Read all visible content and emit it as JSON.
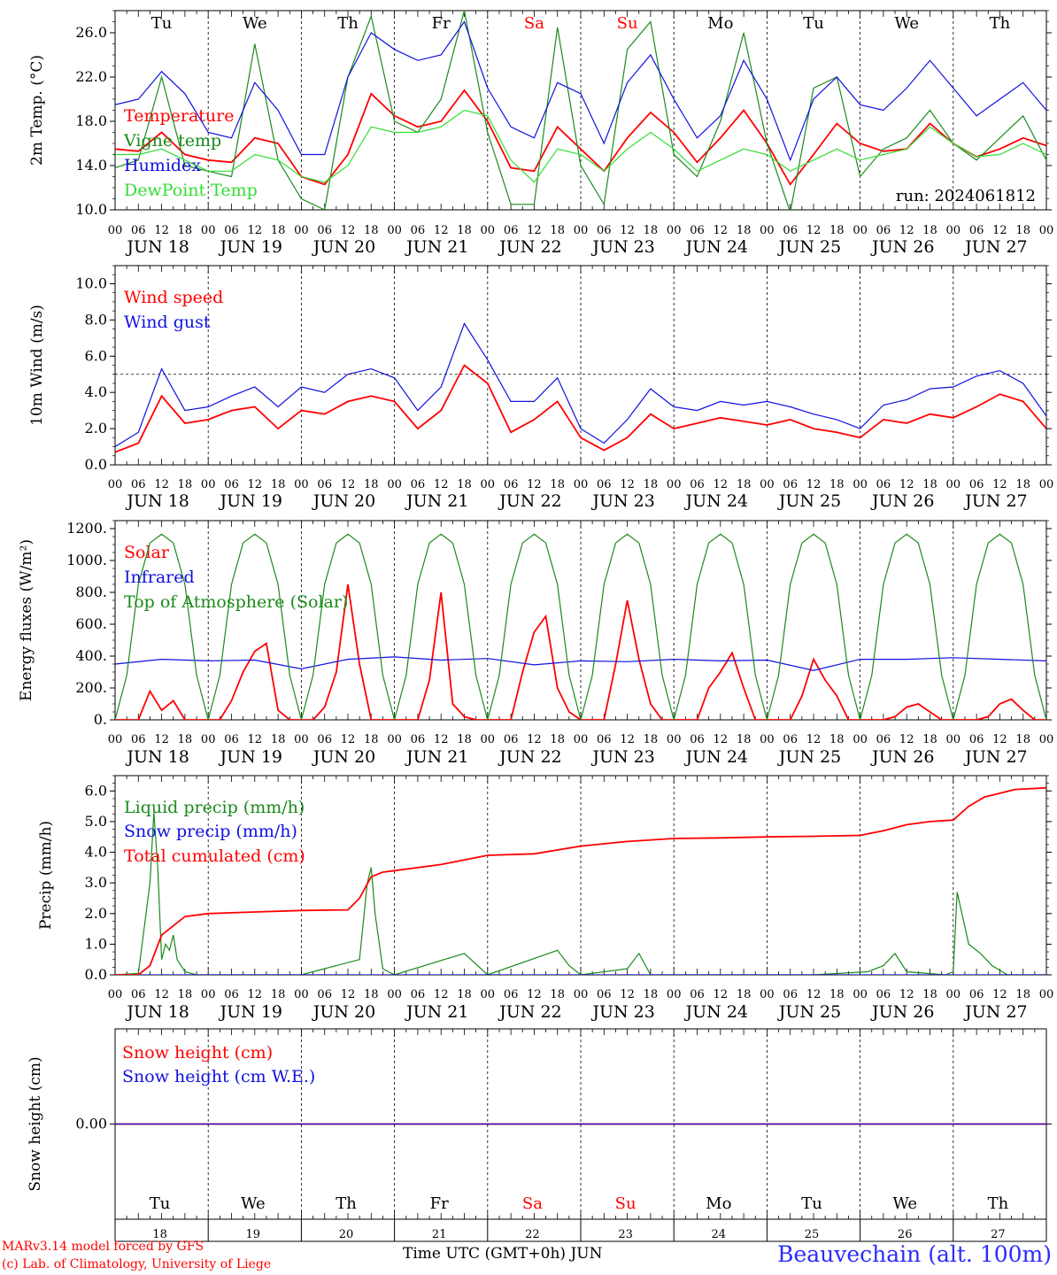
{
  "chart_data": [
    {
      "type": "line",
      "ylabel": "2m Temp. (°C)",
      "ylim": [
        10,
        28
      ],
      "yticks": [
        "10.0",
        "14.0",
        "18.0",
        "22.0",
        "26.0"
      ],
      "ytick_values": [
        10,
        14,
        18,
        22,
        26
      ],
      "days_top": [
        "Tu",
        "We",
        "Th",
        "Fr",
        "Sa",
        "Su",
        "Mo",
        "Tu",
        "We",
        "Th"
      ],
      "days_top_colors": [
        "#000000",
        "#000000",
        "#000000",
        "#000000",
        "#ff0000",
        "#ff0000",
        "#000000",
        "#000000",
        "#000000",
        "#000000"
      ],
      "annotation": "run: 2024061812",
      "x_unit": "hours since JUN 18 00 UTC",
      "series": [
        {
          "name": "Temperature",
          "color": "#ff0000",
          "x": [
            0,
            6,
            12,
            18,
            24,
            30,
            36,
            42,
            48,
            54,
            60,
            66,
            72,
            78,
            84,
            90,
            96,
            102,
            108,
            114,
            120,
            126,
            132,
            138,
            144,
            150,
            156,
            162,
            168,
            174,
            180,
            186,
            192,
            198,
            204,
            210,
            216,
            222,
            228,
            234,
            240
          ],
          "y": [
            15.5,
            15.3,
            17.0,
            15.0,
            14.5,
            14.3,
            16.5,
            16.0,
            13.0,
            12.3,
            15.0,
            20.5,
            18.5,
            17.5,
            18.0,
            20.8,
            18.0,
            13.8,
            13.5,
            17.5,
            15.5,
            13.5,
            16.5,
            18.8,
            17.0,
            14.3,
            16.5,
            19.0,
            16.0,
            12.3,
            15.0,
            17.8,
            16.0,
            15.3,
            15.5,
            17.8,
            16.0,
            14.8,
            15.5,
            16.5,
            15.8
          ]
        },
        {
          "name": "Vigne temp",
          "color": "#1a8a1a",
          "x": [
            0,
            6,
            12,
            18,
            24,
            30,
            36,
            42,
            48,
            54,
            60,
            66,
            72,
            78,
            84,
            90,
            96,
            102,
            108,
            114,
            120,
            126,
            132,
            138,
            144,
            150,
            156,
            162,
            168,
            174,
            180,
            186,
            192,
            198,
            204,
            210,
            216,
            222,
            228,
            234,
            240
          ],
          "y": [
            13.8,
            14.5,
            22.0,
            14.0,
            13.5,
            13.0,
            25.0,
            14.5,
            11.0,
            10.0,
            22.0,
            27.5,
            18.0,
            17.0,
            20.0,
            28.0,
            17.0,
            10.5,
            10.5,
            26.5,
            14.0,
            10.5,
            24.5,
            27.0,
            15.0,
            13.0,
            18.0,
            26.0,
            16.0,
            9.8,
            21.0,
            22.0,
            13.0,
            15.5,
            16.5,
            19.0,
            16.0,
            14.5,
            16.5,
            18.5,
            14.5
          ]
        },
        {
          "name": "Humidex",
          "color": "#1010e0",
          "x": [
            0,
            6,
            12,
            18,
            24,
            30,
            36,
            42,
            48,
            54,
            60,
            66,
            72,
            78,
            84,
            90,
            96,
            102,
            108,
            114,
            120,
            126,
            132,
            138,
            144,
            150,
            156,
            162,
            168,
            174,
            180,
            186,
            192,
            198,
            204,
            210,
            216,
            222,
            228,
            234,
            240
          ],
          "y": [
            19.5,
            20.0,
            22.5,
            20.5,
            17.0,
            16.5,
            21.5,
            19.0,
            15.0,
            15.0,
            22.0,
            26.0,
            24.5,
            23.5,
            24.0,
            27.0,
            21.0,
            17.5,
            16.5,
            21.5,
            20.5,
            16.0,
            21.5,
            24.0,
            20.0,
            16.5,
            18.5,
            23.5,
            20.0,
            14.5,
            20.0,
            22.0,
            19.5,
            19.0,
            21.0,
            23.5,
            21.0,
            18.5,
            20.0,
            21.5,
            19.0
          ]
        },
        {
          "name": "DewPoint Temp",
          "color": "#33dd33",
          "x": [
            0,
            6,
            12,
            18,
            24,
            30,
            36,
            42,
            48,
            54,
            60,
            66,
            72,
            78,
            84,
            90,
            96,
            102,
            108,
            114,
            120,
            126,
            132,
            138,
            144,
            150,
            156,
            162,
            168,
            174,
            180,
            186,
            192,
            198,
            204,
            210,
            216,
            222,
            228,
            234,
            240
          ],
          "y": [
            15.0,
            15.0,
            15.5,
            14.5,
            13.5,
            13.5,
            15.0,
            14.5,
            13.0,
            12.5,
            14.0,
            17.5,
            17.0,
            17.0,
            17.5,
            19.0,
            18.5,
            14.5,
            12.5,
            15.5,
            15.0,
            13.5,
            15.5,
            17.0,
            15.5,
            13.5,
            14.5,
            15.5,
            15.0,
            13.5,
            14.5,
            15.5,
            14.5,
            15.0,
            15.5,
            17.5,
            16.0,
            14.8,
            15.0,
            16.0,
            15.0
          ]
        }
      ]
    },
    {
      "type": "line",
      "ylabel": "10m Wind (m/s)",
      "ylim": [
        0,
        11
      ],
      "yticks": [
        "0.0",
        "2.0",
        "4.0",
        "6.0",
        "8.0",
        "10.0"
      ],
      "ytick_values": [
        0,
        2,
        4,
        6,
        8,
        10
      ],
      "reference_line": 5,
      "series": [
        {
          "name": "Wind speed",
          "color": "#ff0000",
          "x": [
            0,
            6,
            12,
            18,
            24,
            30,
            36,
            42,
            48,
            54,
            60,
            66,
            72,
            78,
            84,
            90,
            96,
            102,
            108,
            114,
            120,
            126,
            132,
            138,
            144,
            150,
            156,
            162,
            168,
            174,
            180,
            186,
            192,
            198,
            204,
            210,
            216,
            222,
            228,
            234,
            240
          ],
          "y": [
            0.7,
            1.2,
            3.8,
            2.3,
            2.5,
            3.0,
            3.2,
            2.0,
            3.0,
            2.8,
            3.5,
            3.8,
            3.5,
            2.0,
            3.0,
            5.5,
            4.5,
            1.8,
            2.5,
            3.5,
            1.5,
            0.8,
            1.5,
            2.8,
            2.0,
            2.3,
            2.6,
            2.4,
            2.2,
            2.5,
            2.0,
            1.8,
            1.5,
            2.5,
            2.3,
            2.8,
            2.6,
            3.2,
            3.9,
            3.5,
            2.0
          ]
        },
        {
          "name": "Wind gust",
          "color": "#1010e0",
          "x": [
            0,
            6,
            12,
            18,
            24,
            30,
            36,
            42,
            48,
            54,
            60,
            66,
            72,
            78,
            84,
            90,
            96,
            102,
            108,
            114,
            120,
            126,
            132,
            138,
            144,
            150,
            156,
            162,
            168,
            174,
            180,
            186,
            192,
            198,
            204,
            210,
            216,
            222,
            228,
            234,
            240
          ],
          "y": [
            1.0,
            1.8,
            5.3,
            3.0,
            3.2,
            3.8,
            4.3,
            3.2,
            4.3,
            4.0,
            5.0,
            5.3,
            4.8,
            3.0,
            4.3,
            7.8,
            5.8,
            3.5,
            3.5,
            4.8,
            2.0,
            1.2,
            2.5,
            4.2,
            3.2,
            3.0,
            3.5,
            3.3,
            3.5,
            3.2,
            2.8,
            2.5,
            2.0,
            3.3,
            3.6,
            4.2,
            4.3,
            4.9,
            5.2,
            4.5,
            2.7
          ]
        }
      ]
    },
    {
      "type": "line",
      "ylabel": "Energy fluxes (W/m²)",
      "ylim": [
        0,
        1250
      ],
      "yticks": [
        "0.",
        "200.",
        "400.",
        "600.",
        "800.",
        "1000.",
        "1200."
      ],
      "ytick_values": [
        0,
        200,
        400,
        600,
        800,
        1000,
        1200
      ],
      "series": [
        {
          "name": "Solar",
          "color": "#ff0000",
          "x": [
            0,
            3,
            6,
            9,
            12,
            15,
            18,
            21,
            24,
            27,
            30,
            33,
            36,
            39,
            42,
            45,
            48,
            51,
            54,
            57,
            60,
            63,
            66,
            69,
            72,
            75,
            78,
            81,
            84,
            87,
            90,
            93,
            96,
            99,
            102,
            105,
            108,
            111,
            114,
            117,
            120,
            123,
            126,
            129,
            132,
            135,
            138,
            141,
            144,
            147,
            150,
            153,
            156,
            159,
            162,
            165,
            168,
            171,
            174,
            177,
            180,
            183,
            186,
            189,
            192,
            195,
            198,
            201,
            204,
            207,
            210,
            213,
            216,
            219,
            222,
            225,
            228,
            231,
            234,
            237,
            240
          ],
          "y": [
            0,
            0,
            0,
            180,
            60,
            120,
            0,
            0,
            0,
            0,
            120,
            300,
            430,
            480,
            60,
            0,
            0,
            0,
            80,
            300,
            850,
            350,
            0,
            0,
            0,
            0,
            0,
            250,
            800,
            100,
            20,
            0,
            0,
            0,
            0,
            300,
            550,
            650,
            200,
            50,
            0,
            0,
            0,
            350,
            750,
            380,
            100,
            0,
            0,
            0,
            0,
            200,
            300,
            420,
            200,
            0,
            0,
            0,
            0,
            150,
            380,
            250,
            150,
            0,
            0,
            0,
            0,
            20,
            80,
            100,
            50,
            0,
            0,
            0,
            0,
            20,
            100,
            130,
            60,
            0,
            0
          ]
        },
        {
          "name": "Infrared",
          "color": "#1010e0",
          "x": [
            0,
            12,
            24,
            36,
            48,
            60,
            72,
            84,
            96,
            108,
            120,
            132,
            144,
            156,
            168,
            180,
            192,
            204,
            216,
            228,
            240
          ],
          "y": [
            350,
            380,
            370,
            375,
            320,
            380,
            395,
            375,
            385,
            345,
            370,
            365,
            380,
            370,
            375,
            310,
            380,
            380,
            390,
            380,
            370
          ]
        },
        {
          "name": "Top of Atmosphere (Solar)",
          "color": "#1a8a1a",
          "x": [
            0,
            3,
            6,
            9,
            12,
            15,
            18,
            21,
            24
          ],
          "y": [
            0,
            280,
            850,
            1110,
            1165,
            1110,
            850,
            280,
            0
          ],
          "daily_repeat": true
        }
      ]
    },
    {
      "type": "line",
      "ylabel": "Precip (mm/h)",
      "ylim": [
        0,
        6.5
      ],
      "yticks": [
        "0.0",
        "1.0",
        "2.0",
        "3.0",
        "4.0",
        "5.0",
        "6.0"
      ],
      "ytick_values": [
        0,
        1,
        2,
        3,
        4,
        5,
        6
      ],
      "series": [
        {
          "name": "Liquid precip (mm/h)",
          "color": "#1a8a1a",
          "x": [
            0,
            6,
            9,
            10,
            11,
            12,
            13,
            14,
            15,
            16,
            18,
            21,
            24,
            48,
            63,
            65,
            66,
            67,
            69,
            72,
            90,
            96,
            114,
            117,
            120,
            132,
            135,
            138,
            168,
            180,
            194,
            198,
            201,
            204,
            214,
            216,
            217,
            220,
            223,
            226,
            230,
            240
          ],
          "y": [
            0,
            0.05,
            3.0,
            5.3,
            3.5,
            0.5,
            1.0,
            0.8,
            1.3,
            0.5,
            0.1,
            0,
            0,
            0,
            0.5,
            3.0,
            3.5,
            2.0,
            0.2,
            0,
            0.7,
            0,
            0.8,
            0.3,
            0,
            0.2,
            0.7,
            0,
            0,
            0,
            0.1,
            0.3,
            0.7,
            0.1,
            0,
            0.1,
            2.7,
            1.0,
            0.7,
            0.3,
            0,
            0
          ]
        },
        {
          "name": "Snow precip (mm/h)",
          "color": "#1010e0",
          "x": [
            0,
            240
          ],
          "y": [
            0,
            0
          ]
        },
        {
          "name": "Total cumulated (cm)",
          "color": "#ff0000",
          "x": [
            0,
            6,
            9,
            12,
            15,
            18,
            24,
            36,
            48,
            60,
            63,
            66,
            69,
            72,
            84,
            96,
            108,
            120,
            132,
            144,
            156,
            168,
            180,
            192,
            198,
            204,
            210,
            216,
            220,
            224,
            232,
            240
          ],
          "y": [
            0,
            0,
            0.3,
            1.3,
            1.6,
            1.9,
            2.0,
            2.05,
            2.1,
            2.12,
            2.5,
            3.2,
            3.35,
            3.4,
            3.6,
            3.9,
            3.95,
            4.2,
            4.35,
            4.45,
            4.47,
            4.5,
            4.52,
            4.55,
            4.7,
            4.9,
            5.0,
            5.05,
            5.5,
            5.8,
            6.05,
            6.1
          ]
        }
      ]
    },
    {
      "type": "line",
      "ylabel": "Snow height (cm)",
      "ylim": [
        -1,
        1
      ],
      "yticks": [
        "0.00"
      ],
      "ytick_values": [
        0
      ],
      "days_bottom": [
        "Tu",
        "We",
        "Th",
        "Fr",
        "Sa",
        "Su",
        "Mo",
        "Tu",
        "We",
        "Th"
      ],
      "days_bottom_colors": [
        "#000000",
        "#000000",
        "#000000",
        "#000000",
        "#ff0000",
        "#ff0000",
        "#000000",
        "#000000",
        "#000000",
        "#000000"
      ],
      "date_numbers": [
        "18",
        "19",
        "20",
        "21",
        "22",
        "23",
        "24",
        "25",
        "26",
        "27"
      ],
      "series": [
        {
          "name": "Snow height (cm)",
          "color": "#ff0000",
          "x": [
            0,
            240
          ],
          "y": [
            0,
            0
          ]
        },
        {
          "name": "Snow height (cm W.E.)",
          "color": "#1010e0",
          "x": [
            0,
            240
          ],
          "y": [
            0,
            0
          ]
        }
      ]
    }
  ],
  "xticks_hours": [
    "00",
    "06",
    "12",
    "18"
  ],
  "dates": [
    "JUN 18",
    "JUN 19",
    "JUN 20",
    "JUN 21",
    "JUN 22",
    "JUN 23",
    "JUN 24",
    "JUN 25",
    "JUN 26",
    "JUN 27"
  ],
  "footer": {
    "credit1": "MARv3.14 model forced by GFS",
    "credit2": "(c) Lab. of Climatology, University of Liege",
    "time_label": "Time UTC (GMT+0h) JUN",
    "station": "Beauvechain (alt. 100m)"
  }
}
